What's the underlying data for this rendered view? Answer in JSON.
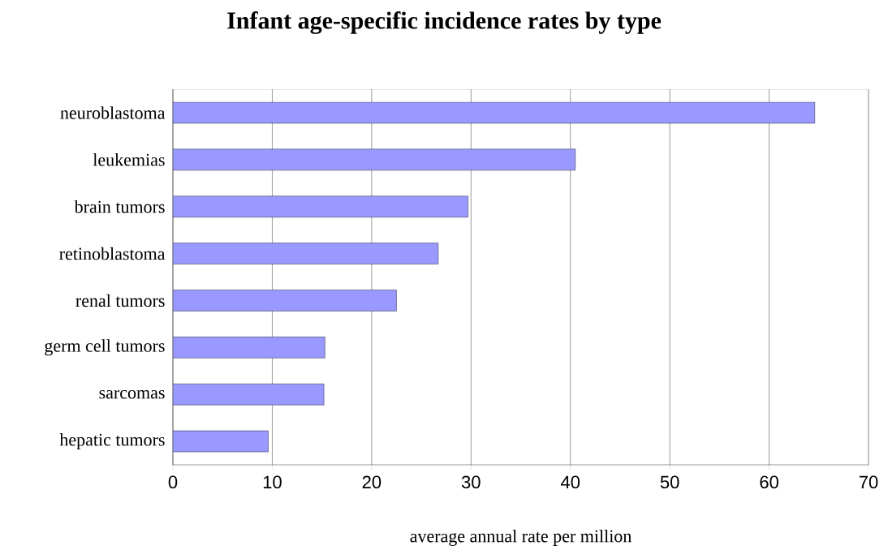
{
  "chart_data": {
    "type": "bar",
    "orientation": "horizontal",
    "title": "Infant age-specific incidence rates by type",
    "xlabel": "average annual rate per million",
    "categories": [
      "neuroblastoma",
      "leukemias",
      "brain tumors",
      "retinoblastoma",
      "renal tumors",
      "germ cell tumors",
      "sarcomas",
      "hepatic tumors"
    ],
    "values": [
      64.6,
      40.5,
      29.7,
      26.7,
      22.5,
      15.3,
      15.2,
      9.6
    ],
    "color": "#9999ff",
    "xlim": [
      0,
      70
    ],
    "xticks": [
      0,
      10,
      20,
      30,
      40,
      50,
      60,
      70
    ],
    "grid": "x"
  }
}
